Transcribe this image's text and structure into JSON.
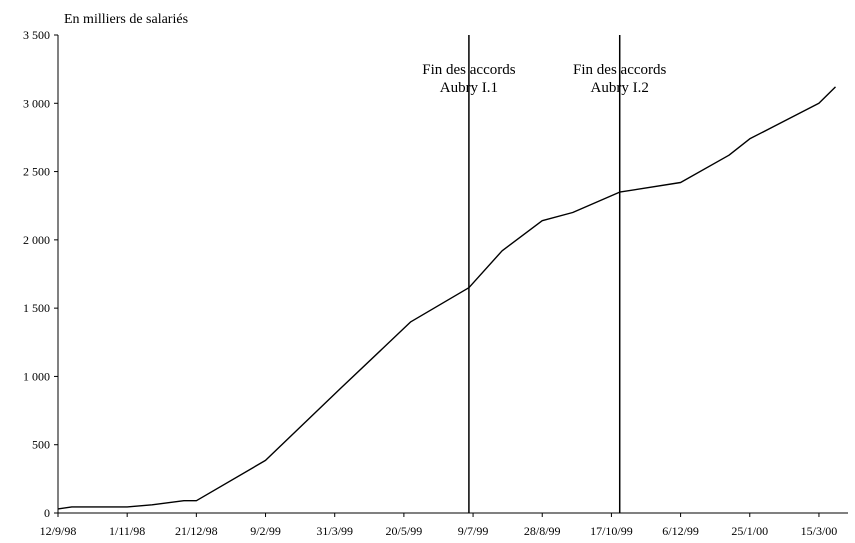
{
  "chart_data": {
    "type": "line",
    "ylabel": "En milliers de salariés",
    "xlabel": "",
    "title": "",
    "ylim": [
      0,
      3500
    ],
    "y_ticks": [
      0,
      500,
      1000,
      1500,
      2000,
      2500,
      3000,
      3500
    ],
    "y_tick_labels": [
      "0",
      "500",
      "1 000",
      "1 500",
      "2 000",
      "2 500",
      "3 000",
      "3 500"
    ],
    "x_range": [
      "1998-09-12",
      "2000-04-05"
    ],
    "x_ticks": [
      {
        "date": "1998-09-12",
        "label": "12/9/98"
      },
      {
        "date": "1998-11-01",
        "label": "1/11/98"
      },
      {
        "date": "1998-12-21",
        "label": "21/12/98"
      },
      {
        "date": "1999-02-09",
        "label": "9/2/99"
      },
      {
        "date": "1999-03-31",
        "label": "31/3/99"
      },
      {
        "date": "1999-05-20",
        "label": "20/5/99"
      },
      {
        "date": "1999-07-09",
        "label": "9/7/99"
      },
      {
        "date": "1999-08-28",
        "label": "28/8/99"
      },
      {
        "date": "1999-10-17",
        "label": "17/10/99"
      },
      {
        "date": "1999-12-06",
        "label": "6/12/99"
      },
      {
        "date": "2000-01-25",
        "label": "25/1/00"
      },
      {
        "date": "2000-03-15",
        "label": "15/3/00"
      }
    ],
    "series": [
      {
        "points": [
          {
            "x": "1998-09-12",
            "y": 30
          },
          {
            "x": "1998-09-22",
            "y": 45
          },
          {
            "x": "1998-10-12",
            "y": 45
          },
          {
            "x": "1998-11-01",
            "y": 45
          },
          {
            "x": "1998-11-19",
            "y": 60
          },
          {
            "x": "1998-12-12",
            "y": 90
          },
          {
            "x": "1998-12-21",
            "y": 90
          },
          {
            "x": "1999-02-09",
            "y": 385
          },
          {
            "x": "1999-04-05",
            "y": 920
          },
          {
            "x": "1999-05-25",
            "y": 1400
          },
          {
            "x": "1999-07-06",
            "y": 1650
          },
          {
            "x": "1999-07-30",
            "y": 1920
          },
          {
            "x": "1999-08-28",
            "y": 2140
          },
          {
            "x": "1999-09-19",
            "y": 2200
          },
          {
            "x": "1999-10-23",
            "y": 2350
          },
          {
            "x": "1999-12-06",
            "y": 2420
          },
          {
            "x": "2000-01-10",
            "y": 2620
          },
          {
            "x": "2000-01-25",
            "y": 2740
          },
          {
            "x": "2000-03-15",
            "y": 3000
          },
          {
            "x": "2000-03-27",
            "y": 3120
          }
        ]
      }
    ],
    "annotations": [
      {
        "date": "1999-07-06",
        "lines": [
          "Fin des accords",
          "Aubry I.1"
        ]
      },
      {
        "date": "1999-10-23",
        "lines": [
          "Fin des accords",
          "Aubry I.2"
        ]
      }
    ],
    "grid": false,
    "legend": "none",
    "colors": {
      "line": "#000000",
      "axis": "#000000",
      "background": "#ffffff"
    }
  }
}
